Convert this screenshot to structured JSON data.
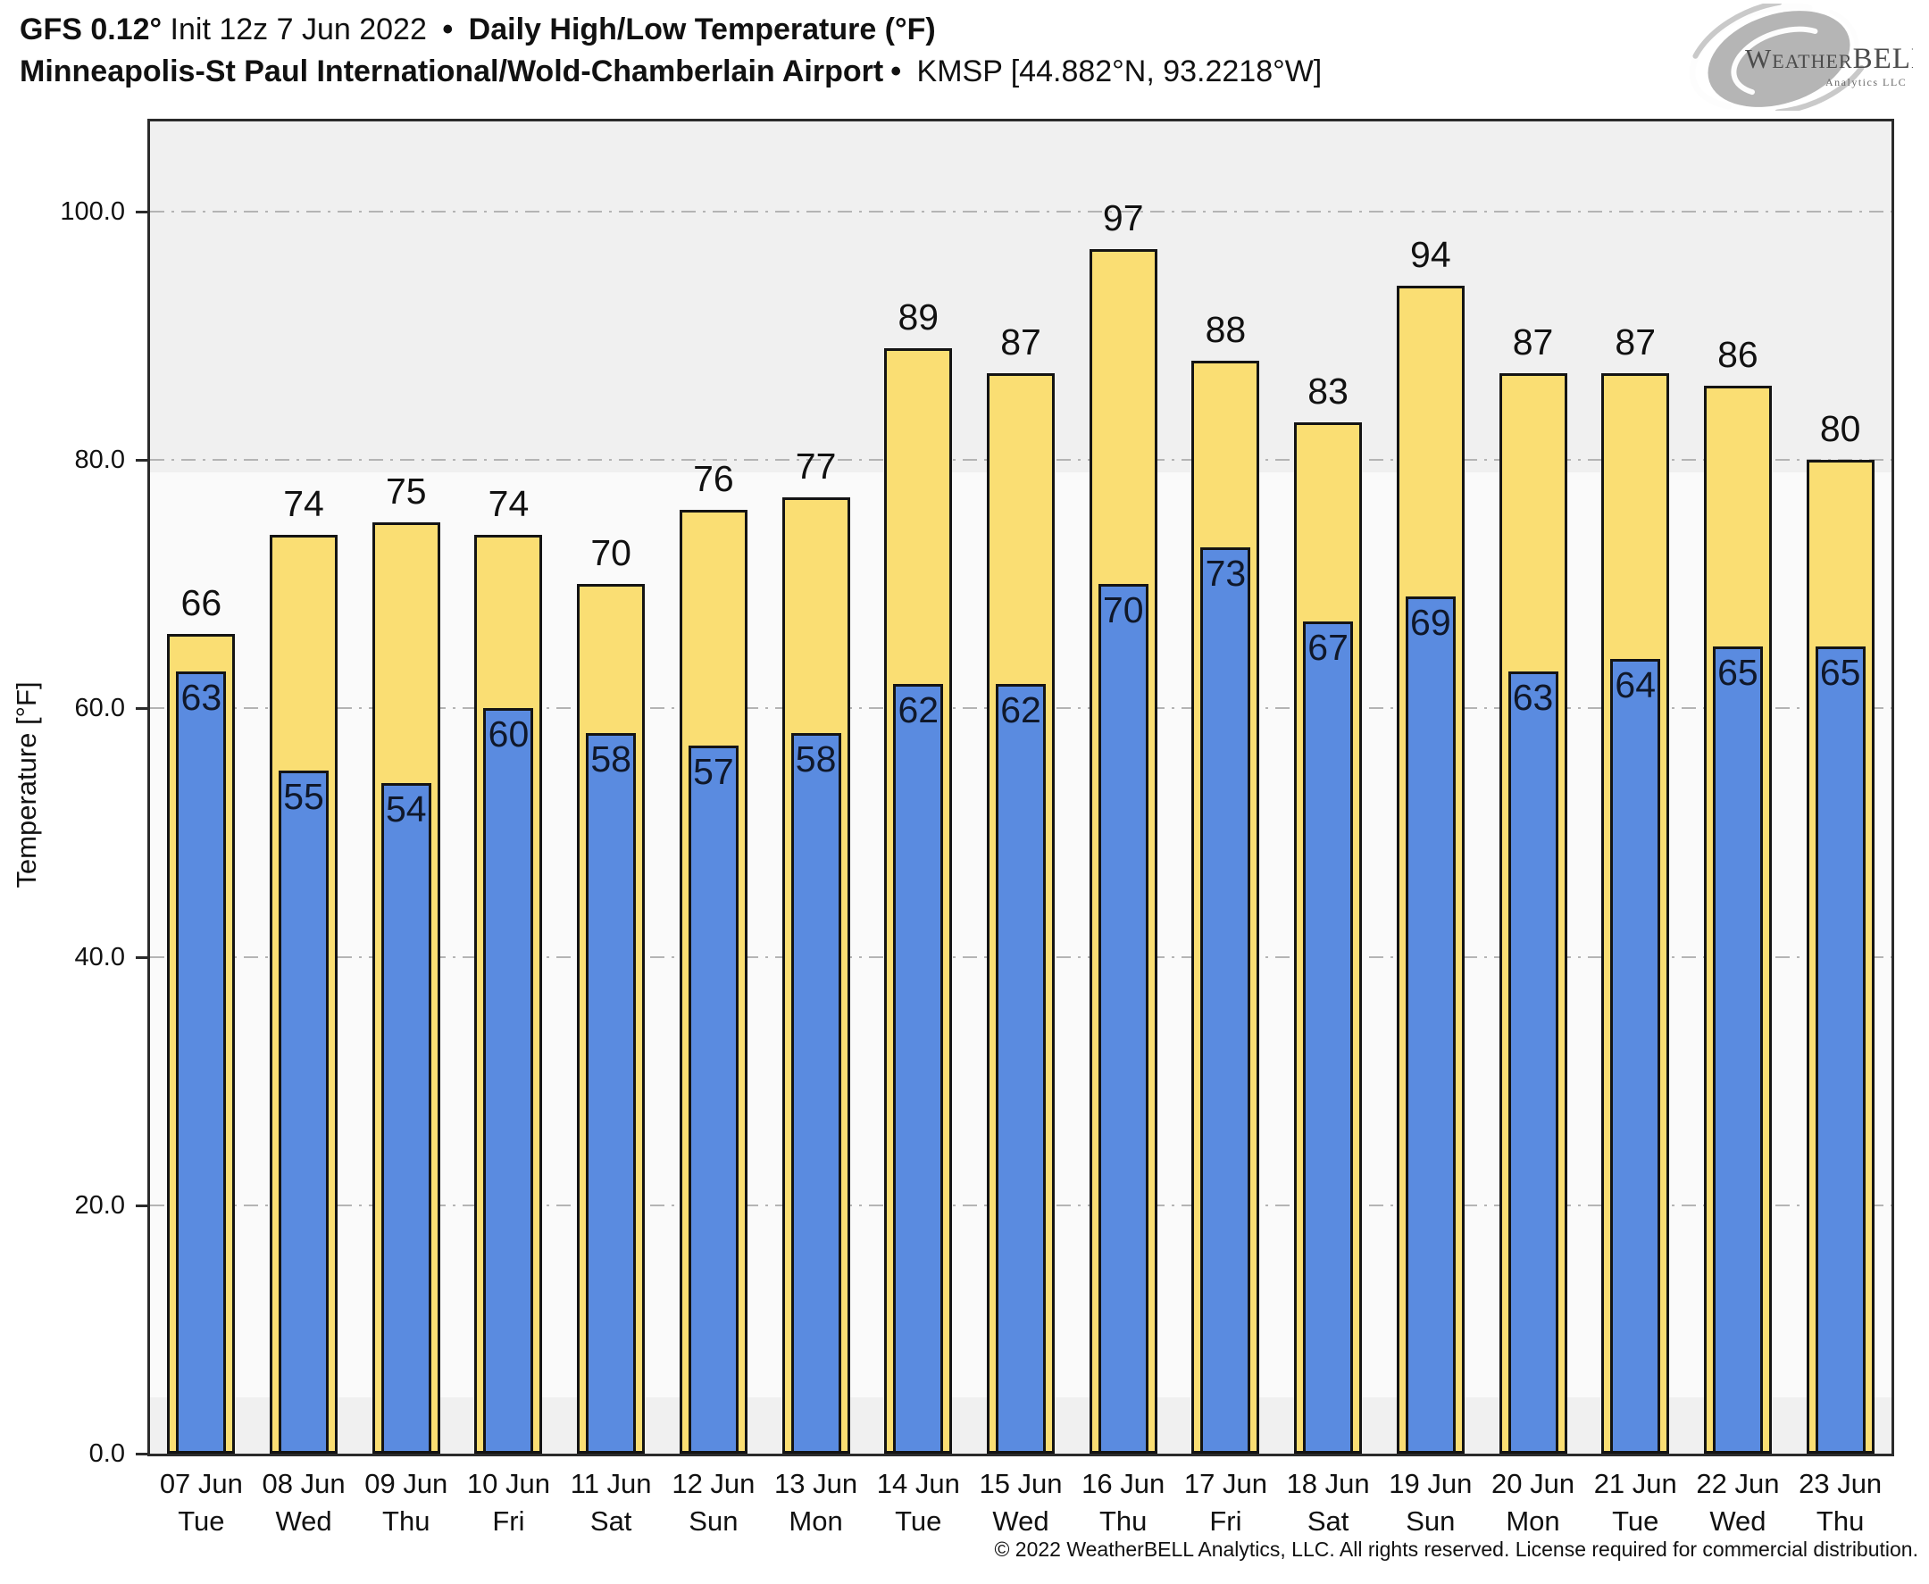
{
  "header": {
    "line1": {
      "model": "GFS 0.12°",
      "init": " Init 12z 7 Jun 2022 ",
      "sep": "•",
      "product": " Daily High/Low Temperature (°F)"
    },
    "line2": {
      "station": "Minneapolis-St Paul International/Wold-Chamberlain Airport",
      "sep": "•",
      "meta": " KMSP [44.882°N, 93.2218°W]"
    }
  },
  "logo": {
    "brand_weather": "Weather",
    "brand_bell": "BELL",
    "brand_sub": "Analytics LLC"
  },
  "chart_data": {
    "type": "bar",
    "title": "Daily High/Low Temperature (°F) — KMSP",
    "ylabel": "Temperature [°F]",
    "xlabel": "",
    "ylim": [
      0,
      107
    ],
    "yticks": [
      0,
      20,
      40,
      60,
      80,
      100
    ],
    "ytick_labels": [
      "0.0",
      "20.0",
      "40.0",
      "60.0",
      "80.0",
      "100.0"
    ],
    "grid": true,
    "legend": "none",
    "categories": [
      "07 Jun",
      "08 Jun",
      "09 Jun",
      "10 Jun",
      "11 Jun",
      "12 Jun",
      "13 Jun",
      "14 Jun",
      "15 Jun",
      "16 Jun",
      "17 Jun",
      "18 Jun",
      "19 Jun",
      "20 Jun",
      "21 Jun",
      "22 Jun",
      "23 Jun"
    ],
    "day_names": [
      "Tue",
      "Wed",
      "Thu",
      "Fri",
      "Sat",
      "Sun",
      "Mon",
      "Tue",
      "Wed",
      "Thu",
      "Fri",
      "Sat",
      "Sun",
      "Mon",
      "Tue",
      "Wed",
      "Thu"
    ],
    "series": [
      {
        "name": "High",
        "values": [
          66,
          74,
          75,
          74,
          70,
          76,
          77,
          89,
          87,
          97,
          88,
          83,
          94,
          87,
          87,
          86,
          80
        ]
      },
      {
        "name": "Low",
        "values": [
          63,
          55,
          54,
          60,
          58,
          57,
          58,
          62,
          62,
          70,
          73,
          67,
          69,
          63,
          64,
          65,
          65
        ]
      }
    ],
    "colors": {
      "high_bar": "#FADE73",
      "low_bar": "#5A8BE0",
      "bar_edge": "#141414",
      "plot_bg_light": "#fafafa",
      "plot_bg_shade": "#f0f0f0",
      "grid_color": "#b4b4b4",
      "frame_color": "#2b2b2b"
    },
    "layout_hints": {
      "shade_above_f": 79,
      "shade_below_f": 4.5,
      "bar_labels": "high above bar, low inside top of blue bar",
      "legend_position": "none"
    }
  },
  "footer": {
    "copyright": "© 2022 WeatherBELL Analytics, LLC. All rights reserved. License required for commercial distribution."
  }
}
